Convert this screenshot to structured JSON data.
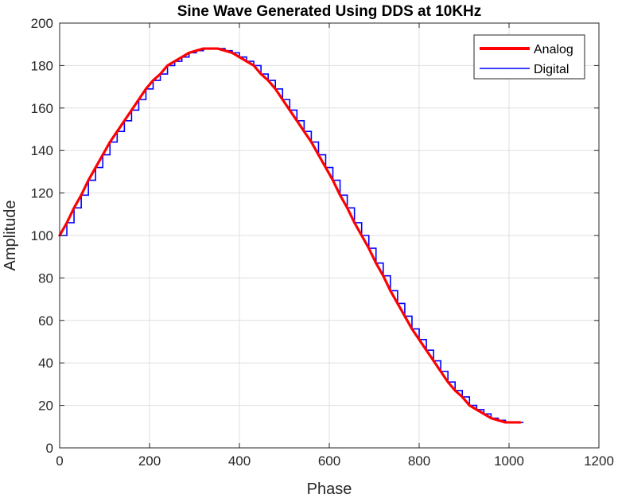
{
  "chart_data": {
    "type": "line",
    "title": "Sine Wave Generated Using DDS at 10KHz",
    "xlabel": "Phase",
    "ylabel": "Amplitude",
    "xlim": [
      0,
      1200
    ],
    "ylim": [
      0,
      200
    ],
    "xticks": [
      "0",
      "200",
      "400",
      "600",
      "800",
      "1000",
      "1200"
    ],
    "yticks": [
      "0",
      "20",
      "40",
      "60",
      "80",
      "100",
      "120",
      "140",
      "160",
      "180",
      "200"
    ],
    "grid": true,
    "legend": "top-right",
    "sample_step": 16,
    "x_max": 1024,
    "series": [
      {
        "name": "Analog",
        "color": "#ff0000",
        "style": "line",
        "x": [
          0,
          16,
          32,
          48,
          64,
          80,
          96,
          112,
          128,
          144,
          160,
          176,
          192,
          208,
          224,
          240,
          256,
          272,
          288,
          304,
          320,
          336,
          352,
          368,
          384,
          400,
          416,
          432,
          448,
          464,
          480,
          496,
          512,
          528,
          544,
          560,
          576,
          592,
          608,
          624,
          640,
          656,
          672,
          688,
          704,
          720,
          736,
          752,
          768,
          784,
          800,
          816,
          832,
          848,
          864,
          880,
          896,
          912,
          928,
          944,
          960,
          976,
          992,
          1008,
          1024
        ],
        "y": [
          100,
          106,
          113,
          119,
          126,
          132,
          138,
          144,
          149,
          154,
          159,
          164,
          169,
          173,
          176,
          180,
          182,
          184,
          186,
          187,
          188,
          188,
          188,
          187,
          186,
          184,
          182,
          180,
          176,
          173,
          169,
          164,
          159,
          154,
          149,
          144,
          138,
          132,
          126,
          119,
          113,
          106,
          100,
          94,
          87,
          81,
          74,
          68,
          62,
          56,
          51,
          46,
          41,
          36,
          31,
          27,
          24,
          20,
          18,
          16,
          14,
          13,
          12,
          12,
          12
        ]
      },
      {
        "name": "Digital",
        "color": "#0000ff",
        "style": "step",
        "x": [],
        "y": []
      }
    ]
  }
}
